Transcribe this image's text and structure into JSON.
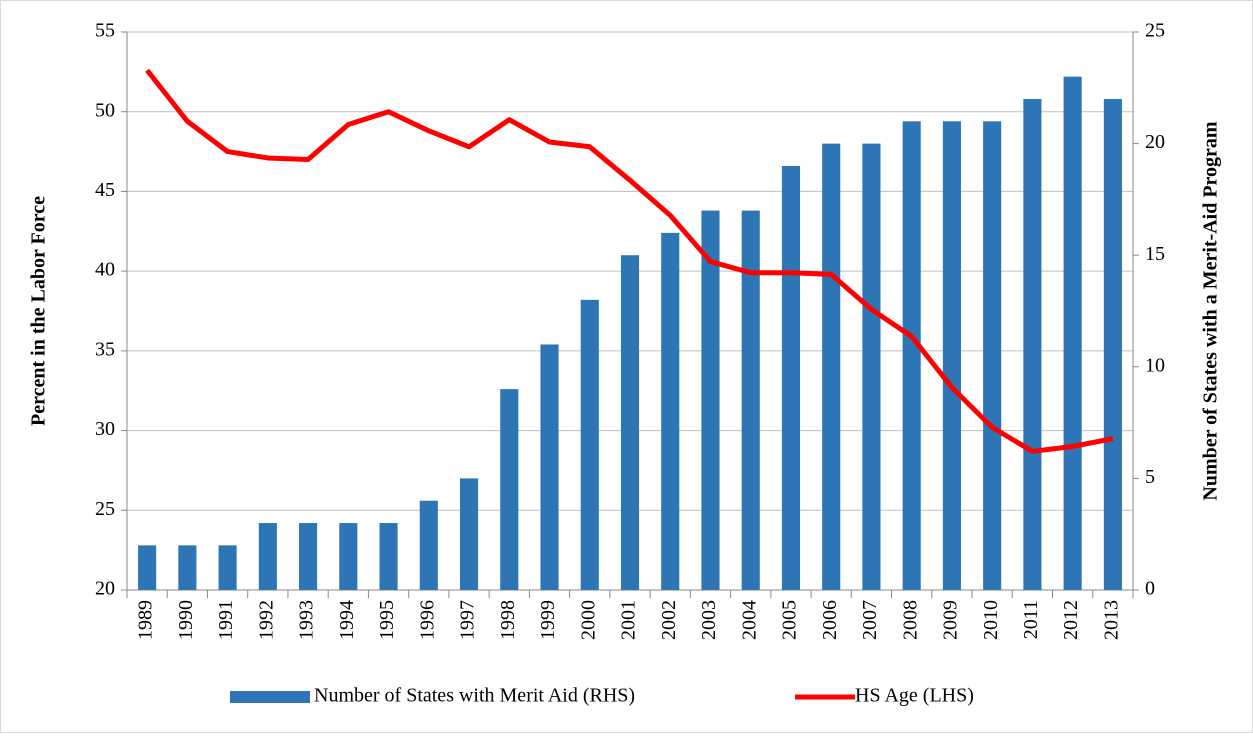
{
  "chart_data": {
    "type": "bar-line",
    "y_label": "Percent in the Labor Force",
    "y2_label": "Number  of States with a Merit-Aid Program",
    "categories": [
      "1989",
      "1990",
      "1991",
      "1992",
      "1993",
      "1994",
      "1995",
      "1996",
      "1997",
      "1998",
      "1999",
      "2000",
      "2001",
      "2002",
      "2003",
      "2004",
      "2005",
      "2006",
      "2007",
      "2008",
      "2009",
      "2010",
      "2011",
      "2012",
      "2013"
    ],
    "series": [
      {
        "name": "Number of States with Merit Aid (RHS)",
        "type": "bar",
        "axis": "y2",
        "color": "#2e75b6",
        "values": [
          2,
          2,
          2,
          3,
          3,
          3,
          3,
          4,
          5,
          9,
          11,
          13,
          15,
          16,
          17,
          17,
          19,
          20,
          20,
          21,
          21,
          21,
          22,
          23,
          22
        ]
      },
      {
        "name": "HS Age (LHS)",
        "type": "line",
        "axis": "y",
        "color": "#ff0000",
        "values": [
          52.6,
          49.4,
          47.5,
          47.1,
          47.0,
          49.2,
          50.0,
          48.8,
          47.8,
          49.5,
          48.1,
          47.8,
          45.7,
          43.5,
          40.6,
          39.9,
          39.9,
          39.8,
          37.6,
          35.9,
          32.7,
          30.2,
          28.7,
          29.0,
          29.5
        ]
      }
    ],
    "ylim": [
      20,
      55
    ],
    "yticks": [
      20,
      25,
      30,
      35,
      40,
      45,
      50,
      55
    ],
    "y2lim": [
      0,
      25
    ],
    "y2ticks": [
      0,
      5,
      10,
      15,
      20,
      25
    ],
    "grid": true,
    "legend": "bottom"
  }
}
